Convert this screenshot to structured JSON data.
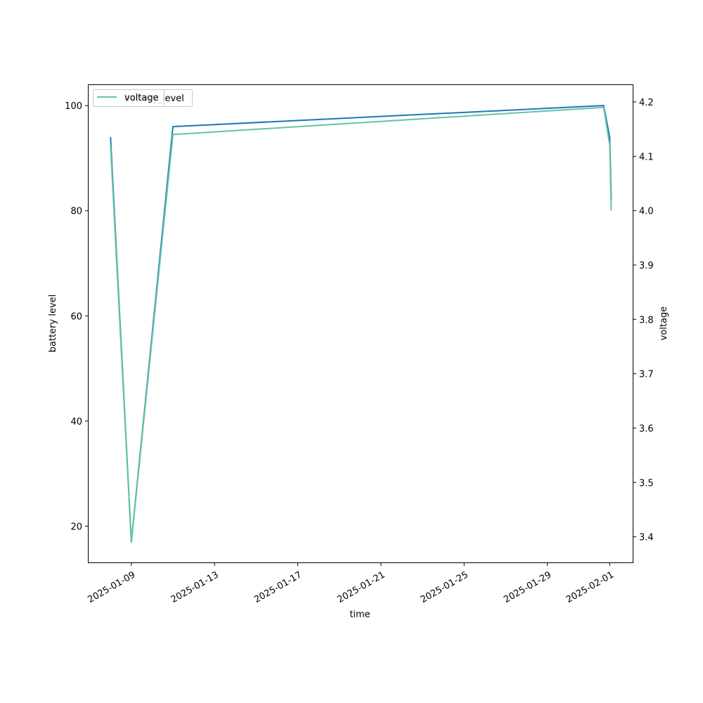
{
  "chart_data": {
    "type": "line",
    "title": "",
    "xlabel": "time",
    "ylabel_left": "battery level",
    "ylabel_right": "voltage",
    "x_ticks": [
      "2025-01-09",
      "2025-01-13",
      "2025-01-17",
      "2025-01-21",
      "2025-01-25",
      "2025-01-29",
      "2025-02-01"
    ],
    "y_left_ticks": [
      20,
      40,
      60,
      80,
      100
    ],
    "y_right_ticks": [
      3.4,
      3.5,
      3.6,
      3.7,
      3.8,
      3.9,
      4.0,
      4.1,
      4.2
    ],
    "xlim": [
      "2025-01-06T22:40",
      "2025-02-02T02:30"
    ],
    "y_left_lim": [
      13.1,
      103.9
    ],
    "y_right_lim": [
      3.353,
      4.231
    ],
    "grid": false,
    "legend": {
      "placement": "upper-left",
      "overlapping": true
    },
    "series": [
      {
        "name": "battery_level",
        "axis": "left",
        "color": "#1f77b4",
        "points": [
          {
            "x": "2025-01-08T00:00",
            "y": 94
          },
          {
            "x": "2025-01-09T00:00",
            "y": 17
          },
          {
            "x": "2025-01-11T00:00",
            "y": 96
          },
          {
            "x": "2025-01-31T17:00",
            "y": 100
          },
          {
            "x": "2025-02-01T00:00",
            "y": 94
          },
          {
            "x": "2025-02-01T01:45",
            "y": 82
          }
        ]
      },
      {
        "name": "voltage",
        "axis": "right",
        "color": "#66c2a5",
        "points": [
          {
            "x": "2025-01-08T00:00",
            "y": 4.12
          },
          {
            "x": "2025-01-09T00:00",
            "y": 3.39
          },
          {
            "x": "2025-01-11T00:00",
            "y": 4.14
          },
          {
            "x": "2025-01-31T17:00",
            "y": 4.19
          },
          {
            "x": "2025-02-01T00:00",
            "y": 4.12
          },
          {
            "x": "2025-02-01T01:45",
            "y": 4.0
          }
        ]
      }
    ]
  }
}
